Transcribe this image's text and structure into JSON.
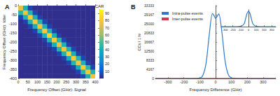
{
  "chart_data": [
    {
      "type": "heatmap",
      "title": "A",
      "x_label": "Frequency Offset (GHz): Signal",
      "y_label": "Frequency Offset (GHz): Idler",
      "xlim": [
        0,
        400
      ],
      "xticks": [
        0,
        50,
        100,
        150,
        200,
        250,
        300,
        350,
        400
      ],
      "ylim": [
        -400,
        0
      ],
      "yticks": [
        -400,
        -350,
        -300,
        -250,
        -200,
        -150,
        -100,
        -50,
        0
      ],
      "grid": false,
      "x_edges": [
        0,
        25,
        50,
        75,
        100,
        125,
        150,
        175,
        200,
        225,
        250,
        275,
        300,
        325,
        350,
        375,
        400
      ],
      "y_edges": [
        -400,
        -375,
        -350,
        -325,
        -300,
        -275,
        -250,
        -225,
        -200,
        -175,
        -150,
        -125,
        -100,
        -75,
        -50,
        -25,
        0
      ],
      "z": [
        [
          1,
          1,
          1,
          1,
          1,
          1,
          1,
          1,
          1,
          1,
          1,
          1,
          1,
          6,
          42,
          78
        ],
        [
          1,
          1,
          1,
          1,
          1,
          1,
          1,
          1,
          1,
          1,
          1,
          1,
          6,
          44,
          80,
          43
        ],
        [
          1,
          1,
          1,
          1,
          1,
          1,
          1,
          1,
          1,
          1,
          1,
          5,
          41,
          82,
          45,
          6
        ],
        [
          1,
          1,
          1,
          1,
          1,
          1,
          1,
          1,
          1,
          1,
          6,
          43,
          79,
          42,
          5,
          1
        ],
        [
          1,
          1,
          1,
          1,
          1,
          1,
          1,
          1,
          1,
          5,
          40,
          81,
          44,
          6,
          1,
          1
        ],
        [
          1,
          1,
          1,
          1,
          1,
          1,
          1,
          1,
          6,
          42,
          83,
          41,
          5,
          1,
          1,
          1
        ],
        [
          1,
          1,
          1,
          1,
          1,
          1,
          1,
          5,
          44,
          80,
          43,
          6,
          1,
          1,
          1,
          1
        ],
        [
          1,
          1,
          1,
          1,
          1,
          1,
          6,
          41,
          78,
          42,
          5,
          1,
          1,
          1,
          1,
          1
        ],
        [
          1,
          1,
          1,
          1,
          1,
          5,
          43,
          82,
          44,
          6,
          1,
          1,
          1,
          1,
          1,
          1
        ],
        [
          1,
          1,
          1,
          1,
          6,
          42,
          84,
          41,
          5,
          1,
          1,
          1,
          1,
          1,
          1,
          1
        ],
        [
          1,
          1,
          1,
          5,
          44,
          81,
          43,
          6,
          1,
          1,
          1,
          1,
          1,
          1,
          1,
          1
        ],
        [
          1,
          1,
          6,
          41,
          79,
          42,
          5,
          1,
          1,
          1,
          1,
          1,
          1,
          1,
          1,
          1
        ],
        [
          1,
          5,
          43,
          80,
          44,
          6,
          1,
          1,
          1,
          1,
          1,
          1,
          1,
          1,
          1,
          1
        ],
        [
          6,
          42,
          82,
          41,
          5,
          1,
          1,
          1,
          1,
          1,
          1,
          1,
          1,
          1,
          1,
          1
        ],
        [
          44,
          78,
          43,
          6,
          1,
          1,
          1,
          1,
          1,
          1,
          1,
          1,
          1,
          1,
          1,
          1
        ],
        [
          76,
          42,
          5,
          1,
          1,
          1,
          1,
          1,
          1,
          1,
          1,
          1,
          1,
          1,
          1,
          1
        ]
      ],
      "colorbar": {
        "label": "CAR",
        "range": [
          0,
          95
        ],
        "ticks": [
          10,
          20,
          30,
          40,
          50,
          60,
          70,
          80,
          90
        ]
      }
    },
    {
      "type": "line",
      "title": "B",
      "x_label": "Frequency Difference (GHz)",
      "y_label": "CCs / 1 hr",
      "xlim": [
        -380,
        380
      ],
      "xticks": [
        -300,
        -200,
        -100,
        0,
        100,
        200,
        300
      ],
      "ylim": [
        0,
        33333
      ],
      "yticks": [
        0,
        4167,
        8333,
        12500,
        16667,
        20833,
        25000,
        29167,
        33333
      ],
      "grid": false,
      "legend": "upper left",
      "x": [
        -380,
        -150,
        -100,
        -80,
        -60,
        -40,
        -20,
        -10,
        0,
        10,
        20,
        40,
        60,
        80,
        100,
        150,
        380
      ],
      "series": [
        {
          "name": "Intra-pulse events",
          "color": "#2b7bcc",
          "values": [
            0,
            0,
            200,
            1500,
            7000,
            20000,
            29700,
            28800,
            27500,
            28500,
            29500,
            21000,
            8000,
            1800,
            300,
            0,
            0
          ]
        },
        {
          "name": "Inter-pulse events",
          "color": "#d6394f",
          "values": [
            60,
            60,
            60,
            60,
            60,
            60,
            60,
            60,
            60,
            60,
            60,
            60,
            60,
            60,
            60,
            60,
            60
          ]
        }
      ]
    },
    {
      "type": "line",
      "tick_labels": "x",
      "xlim": [
        -350,
        350
      ],
      "xticks": [
        -300,
        -200,
        -100,
        0,
        100,
        200,
        300
      ],
      "ylim": [
        0,
        1.1
      ],
      "grid": false,
      "x": [
        -350,
        -150,
        -100,
        -60,
        -40,
        -20,
        0,
        20,
        40,
        60,
        100,
        150,
        350
      ],
      "series": [
        {
          "color": "#2b7bcc",
          "values": [
            0,
            0,
            0.02,
            0.15,
            0.45,
            0.85,
            1.0,
            0.85,
            0.45,
            0.15,
            0.02,
            0,
            0
          ]
        }
      ]
    }
  ]
}
